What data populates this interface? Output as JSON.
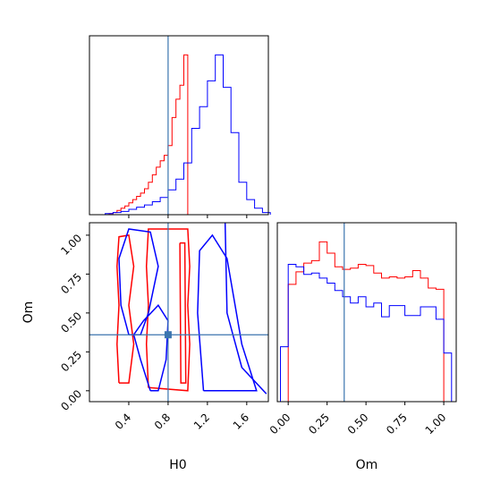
{
  "chart_data": {
    "type": "corner",
    "parameters": [
      "H0",
      "Om"
    ],
    "axis_labels": {
      "H0": "H0",
      "Om": "Om"
    },
    "ranges": {
      "H0": [
        0.0,
        1.82
      ],
      "Om": [
        -0.07,
        1.08
      ]
    },
    "ticks": {
      "H0": {
        "values": [
          0.4,
          0.8,
          1.2,
          1.6
        ],
        "labels": [
          "0.4",
          "0.8",
          "1.2",
          "1.6"
        ]
      },
      "Om": {
        "values": [
          0.0,
          0.25,
          0.5,
          0.75,
          1.0
        ],
        "labels": [
          "0.00",
          "0.25",
          "0.50",
          "0.75",
          "1.00"
        ]
      }
    },
    "truth": {
      "H0": 0.8,
      "Om": 0.36
    },
    "series": [
      {
        "name": "",
        "color": "#ff0000",
        "hist_H0": {
          "edges": [
            0.16,
            0.2,
            0.24,
            0.28,
            0.32,
            0.36,
            0.4,
            0.44,
            0.48,
            0.52,
            0.56,
            0.6,
            0.64,
            0.68,
            0.72,
            0.76,
            0.8,
            0.84,
            0.88,
            0.92,
            0.96,
            1.0,
            1.04,
            1.08
          ],
          "counts": [
            0,
            1,
            2,
            4,
            6,
            8,
            11,
            14,
            17,
            20,
            24,
            30,
            37,
            44,
            50,
            55,
            64,
            90,
            107,
            120,
            148,
            0,
            0
          ]
        },
        "hist_Om": {
          "edges": [
            0.0,
            0.05,
            0.1,
            0.15,
            0.2,
            0.25,
            0.3,
            0.35,
            0.4,
            0.45,
            0.5,
            0.55,
            0.6,
            0.65,
            0.7,
            0.75,
            0.8,
            0.85,
            0.9,
            0.95,
            1.0
          ],
          "counts": [
            94,
            104,
            111,
            113,
            128,
            119,
            108,
            106,
            107,
            110,
            109,
            103,
            99,
            100,
            99,
            100,
            105,
            99,
            91,
            90
          ]
        },
        "contours": [
          [
            [
              0.3,
              0.05
            ],
            [
              0.28,
              0.3
            ],
            [
              0.3,
              0.55
            ],
            [
              0.28,
              0.8
            ],
            [
              0.3,
              0.99
            ],
            [
              0.4,
              1.0
            ],
            [
              0.45,
              0.8
            ],
            [
              0.4,
              0.55
            ],
            [
              0.45,
              0.3
            ],
            [
              0.4,
              0.05
            ],
            [
              0.3,
              0.05
            ]
          ],
          [
            [
              0.6,
              0.02
            ],
            [
              0.58,
              0.3
            ],
            [
              0.6,
              0.55
            ],
            [
              0.58,
              0.8
            ],
            [
              0.6,
              1.04
            ],
            [
              1.0,
              1.04
            ],
            [
              1.02,
              0.8
            ],
            [
              1.0,
              0.55
            ],
            [
              1.02,
              0.3
            ],
            [
              1.0,
              0.0
            ],
            [
              0.6,
              0.02
            ]
          ],
          [
            [
              0.92,
              0.95
            ],
            [
              0.97,
              0.95
            ],
            [
              0.98,
              0.05
            ],
            [
              0.93,
              0.05
            ],
            [
              0.92,
              0.95
            ]
          ]
        ]
      },
      {
        "name": "",
        "color": "#0000ff",
        "hist_H0": {
          "edges": [
            0.16,
            0.24,
            0.32,
            0.4,
            0.48,
            0.56,
            0.64,
            0.72,
            0.8,
            0.88,
            0.96,
            1.04,
            1.12,
            1.2,
            1.28,
            1.36,
            1.44,
            1.52,
            1.6,
            1.68,
            1.76,
            1.84
          ],
          "counts": [
            1,
            2,
            3,
            5,
            7,
            9,
            12,
            16,
            23,
            33,
            48,
            80,
            100,
            124,
            148,
            118,
            76,
            30,
            14,
            6,
            2
          ]
        },
        "hist_Om": {
          "edges": [
            -0.05,
            0.0,
            0.05,
            0.1,
            0.15,
            0.2,
            0.25,
            0.3,
            0.35,
            0.4,
            0.45,
            0.5,
            0.55,
            0.6,
            0.65,
            0.7,
            0.75,
            0.8,
            0.85,
            0.9,
            0.95,
            1.0,
            1.05
          ],
          "counts": [
            44,
            110,
            108,
            102,
            103,
            99,
            95,
            89,
            84,
            79,
            84,
            76,
            79,
            68,
            77,
            77,
            69,
            69,
            76,
            76,
            66,
            39
          ]
        },
        "contours": [
          [
            [
              0.4,
              0.36
            ],
            [
              0.32,
              0.55
            ],
            [
              0.3,
              0.85
            ],
            [
              0.4,
              1.04
            ],
            [
              0.62,
              1.02
            ],
            [
              0.7,
              0.8
            ],
            [
              0.6,
              0.5
            ],
            [
              0.52,
              0.36
            ],
            [
              0.4,
              0.36
            ]
          ],
          [
            [
              0.62,
              0.0
            ],
            [
              0.52,
              0.2
            ],
            [
              0.45,
              0.36
            ],
            [
              0.55,
              0.45
            ],
            [
              0.7,
              0.55
            ],
            [
              0.8,
              0.45
            ],
            [
              0.78,
              0.2
            ],
            [
              0.7,
              0.0
            ],
            [
              0.62,
              0.0
            ]
          ],
          [
            [
              1.16,
              0.0
            ],
            [
              1.1,
              0.5
            ],
            [
              1.12,
              0.9
            ],
            [
              1.25,
              1.0
            ],
            [
              1.4,
              0.85
            ],
            [
              1.55,
              0.3
            ],
            [
              1.7,
              0.0
            ],
            [
              1.16,
              0.0
            ]
          ],
          [
            [
              1.38,
              1.1
            ],
            [
              1.4,
              0.5
            ],
            [
              1.55,
              0.15
            ],
            [
              1.8,
              -0.02
            ]
          ]
        ]
      }
    ]
  }
}
